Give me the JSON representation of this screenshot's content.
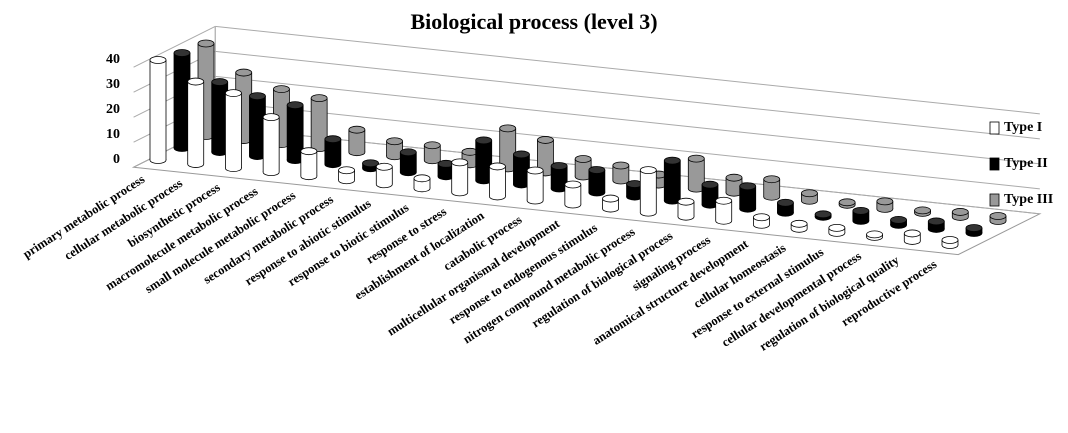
{
  "chart_data": {
    "type": "bar",
    "title": "Biological process (level 3)",
    "categories": [
      "primary metabolic process",
      "cellular metabolic process",
      "biosynthetic process",
      "macromolecule metabolic process",
      "small molecule metabolic process",
      "secondary metabolic process",
      "response to abiotic stimulus",
      "response to biotic stimulus",
      "response to stress",
      "establishment of localization",
      "catabolic process",
      "multicellular organismal development",
      "response to endogenous stimulus",
      "nitrogen compound metabolic process",
      "regulation of biological process",
      "signaling process",
      "anatomical structure development",
      "cellular homeostasis",
      "response to external stimulus",
      "cellular developmental process",
      "regulation of biological quality",
      "reproductive process"
    ],
    "series": [
      {
        "name": "Type I",
        "color": "#ffffff",
        "values": [
          40,
          33,
          30,
          22,
          10,
          4,
          7,
          4,
          12,
          12,
          12,
          8,
          4,
          17,
          6,
          8,
          3,
          2,
          2,
          1,
          3,
          2
        ]
      },
      {
        "name": "Type II",
        "color": "#000000",
        "values": [
          38,
          28,
          24,
          22,
          10,
          2,
          8,
          5,
          16,
          12,
          9,
          9,
          5,
          16,
          8,
          9,
          4,
          1,
          4,
          2,
          3,
          2
        ]
      },
      {
        "name": "Type III",
        "color": "#999999",
        "values": [
          37,
          27,
          22,
          20,
          9,
          6,
          6,
          5,
          16,
          13,
          7,
          6,
          4,
          12,
          6,
          7,
          3,
          1,
          3,
          1,
          2,
          2
        ]
      }
    ],
    "ylim": [
      0,
      40
    ],
    "yticks": [
      0,
      10,
      20,
      30,
      40
    ],
    "grid": true,
    "legend": "right"
  }
}
